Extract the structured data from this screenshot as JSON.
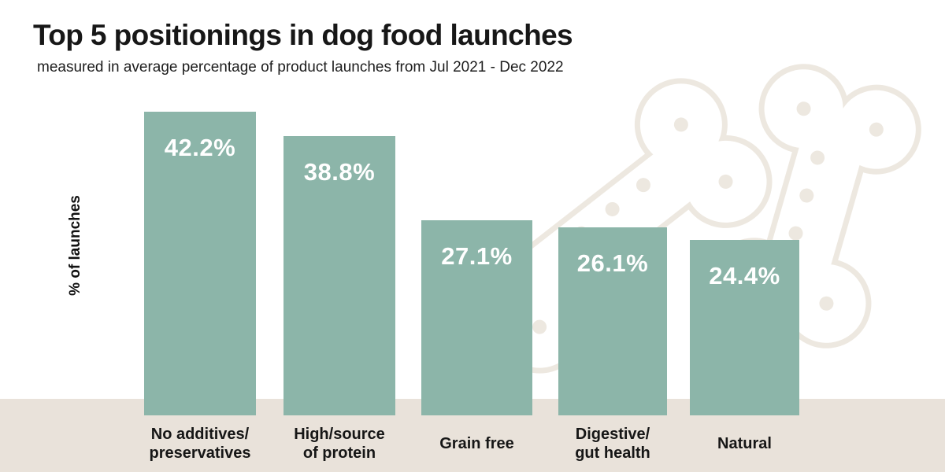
{
  "title": "Top 5 positionings in dog food launches",
  "subtitle": "measured in average percentage of product launches from Jul 2021 - Dec 2022",
  "chart_data": {
    "type": "bar",
    "title": "Top 5 positionings in dog food launches",
    "subtitle": "measured in average percentage of product launches from Jul 2021 - Dec 2022",
    "categories": [
      "No additives/\npreservatives",
      "High/source\nof protein",
      "Grain free",
      "Digestive/\ngut health",
      "Natural"
    ],
    "values": [
      42.2,
      38.8,
      27.1,
      26.1,
      24.4
    ],
    "value_labels": [
      "42.2%",
      "38.8%",
      "27.1%",
      "26.1%",
      "24.4%"
    ],
    "xlabel": "",
    "ylabel": "% of launches",
    "ylim": [
      0,
      45
    ],
    "grid": false,
    "legend": false,
    "value_label_position": "inside-top",
    "bar_color": "#8cb5a9",
    "value_label_color": "#ffffff",
    "category_label_color": "#161616"
  },
  "decor": {
    "background_color": "#ffffff",
    "baseline_strip_color": "#e9e2da",
    "bone_icon_color": "#ede8e0"
  }
}
